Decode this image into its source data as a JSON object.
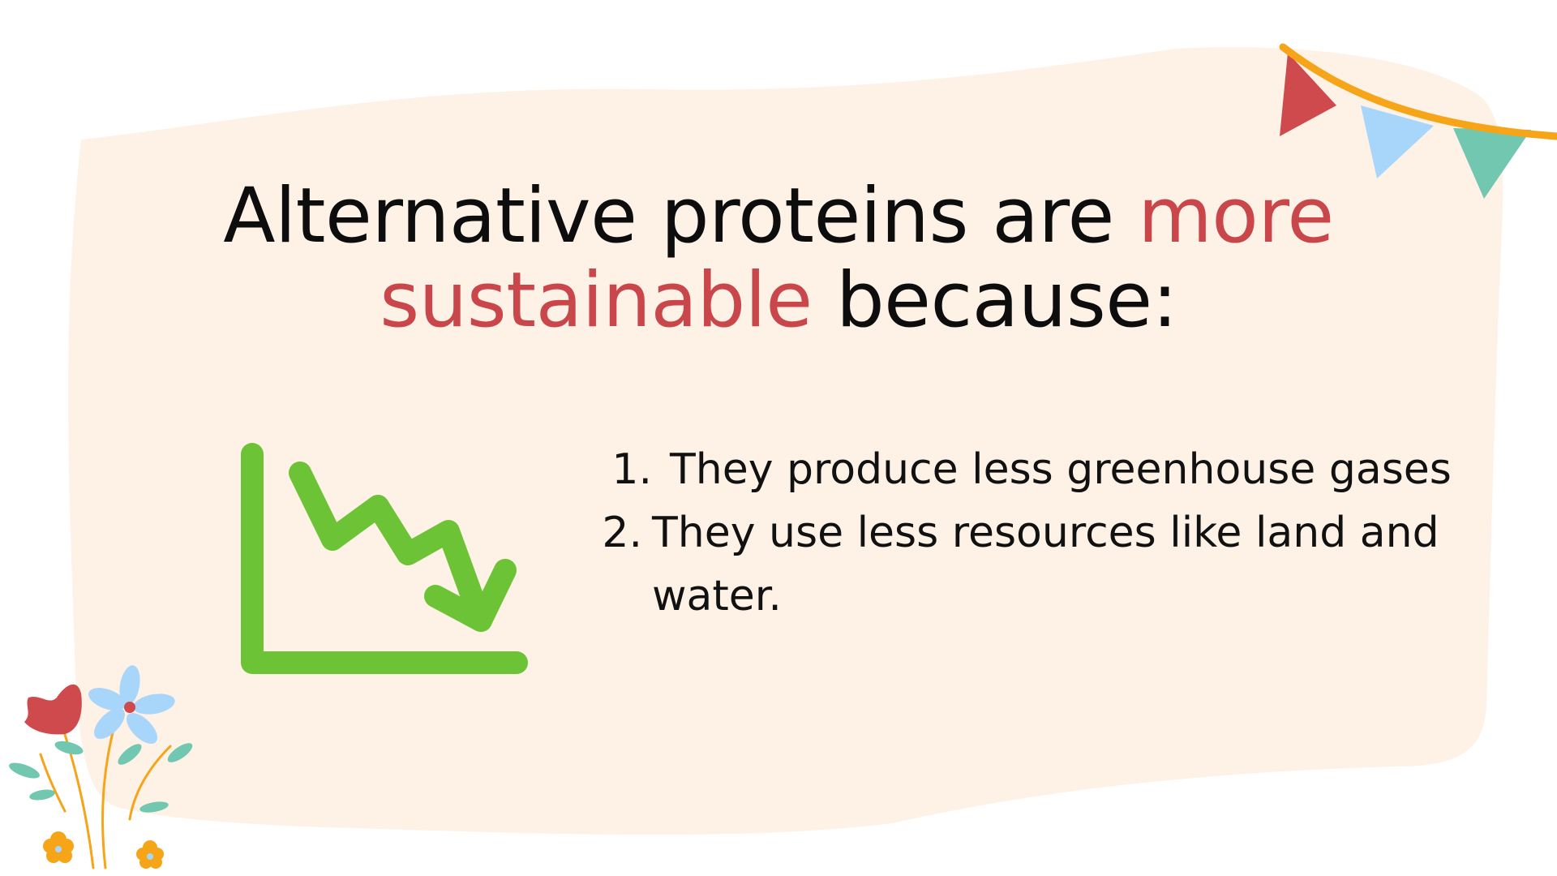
{
  "slide": {
    "title": {
      "part1": "Alternative proteins are ",
      "accent": "more sustainable",
      "part2": " because:"
    },
    "reasons": [
      {
        "number": "1.",
        "text": "They produce less greenhouse gases"
      },
      {
        "number": "2.",
        "text": "They use less resources like land and water."
      }
    ],
    "icons": {
      "chart": "declining-chart-icon",
      "bunting": "bunting-flags-icon",
      "flowers": "flowers-decoration"
    }
  },
  "colors": {
    "background": "#ffffff",
    "card": "#fef1e6",
    "text": "#0d0d0d",
    "accent": "#c9474b",
    "chart_green": "#6cc335",
    "flag_red": "#cf4a4d",
    "flag_blue": "#a8d6fb",
    "flag_green": "#72c7b0",
    "string_orange": "#f6a418"
  }
}
